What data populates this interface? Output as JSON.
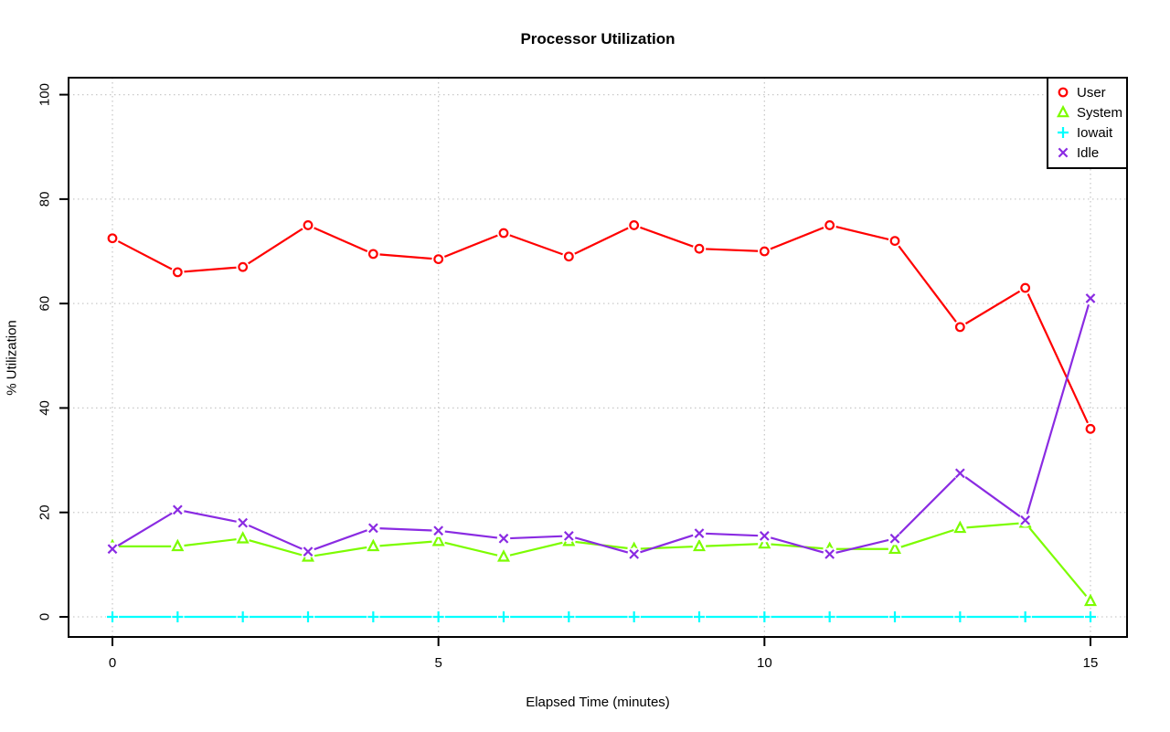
{
  "chart_data": {
    "type": "line",
    "title": "Processor Utilization",
    "xlabel": "Elapsed Time (minutes)",
    "ylabel": "% Utilization",
    "x": [
      0,
      1,
      2,
      3,
      4,
      5,
      6,
      7,
      8,
      9,
      10,
      11,
      12,
      13,
      14,
      15
    ],
    "xticks": [
      0,
      5,
      10,
      15
    ],
    "yticks": [
      0,
      20,
      40,
      60,
      80,
      100
    ],
    "xlim": [
      0,
      15
    ],
    "ylim": [
      0,
      100
    ],
    "grid": true,
    "legend_position": "top-right",
    "series": [
      {
        "name": "User",
        "marker": "circle",
        "color": "#ff0000",
        "values": [
          72.5,
          66,
          67,
          75,
          69.5,
          68.5,
          73.5,
          69,
          75,
          70.5,
          70,
          75,
          72,
          55.5,
          63,
          36
        ]
      },
      {
        "name": "System",
        "marker": "triangle",
        "color": "#7cfc00",
        "values": [
          13.5,
          13.5,
          15,
          11.5,
          13.5,
          14.5,
          11.5,
          14.5,
          13,
          13.5,
          14,
          13,
          13,
          17,
          18,
          3
        ]
      },
      {
        "name": "Iowait",
        "marker": "plus",
        "color": "#00ffff",
        "values": [
          0,
          0,
          0,
          0,
          0,
          0,
          0,
          0,
          0,
          0,
          0,
          0,
          0,
          0,
          0,
          0
        ]
      },
      {
        "name": "Idle",
        "marker": "x",
        "color": "#8a2be2",
        "values": [
          13,
          20.5,
          18,
          12.5,
          17,
          16.5,
          15,
          15.5,
          12,
          16,
          15.5,
          12,
          15,
          27.5,
          18.5,
          61
        ]
      }
    ],
    "grid_color": "#c9c9c9",
    "axis_color": "#000000"
  }
}
